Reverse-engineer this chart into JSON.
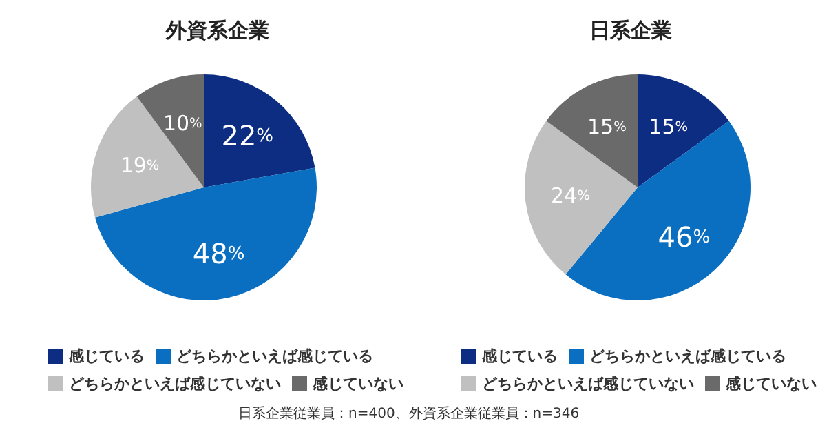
{
  "chart_data": [
    {
      "type": "pie",
      "title": "外資系企業",
      "categories": [
        "感じている",
        "どちらかといえば感じている",
        "どちらかといえば感じていない",
        "感じていない"
      ],
      "values": [
        22,
        48,
        19,
        10
      ],
      "value_labels": [
        "22%",
        "48%",
        "19%",
        "10%"
      ],
      "colors": [
        "#0d2d82",
        "#0a6fc0",
        "#c0c0c0",
        "#6a6a6a"
      ],
      "legend": "bottom",
      "annotations": [
        "日系企業従業員：n=400、外資系企業従業員：n=346"
      ]
    },
    {
      "type": "pie",
      "title": "日系企業",
      "categories": [
        "感じている",
        "どちらかといえば感じている",
        "どちらかといえば感じていない",
        "感じていない"
      ],
      "values": [
        15,
        46,
        24,
        15
      ],
      "value_labels": [
        "15%",
        "46%",
        "24%",
        "15%"
      ],
      "colors": [
        "#0d2d82",
        "#0a6fc0",
        "#c0c0c0",
        "#6a6a6a"
      ],
      "legend": "bottom"
    }
  ]
}
